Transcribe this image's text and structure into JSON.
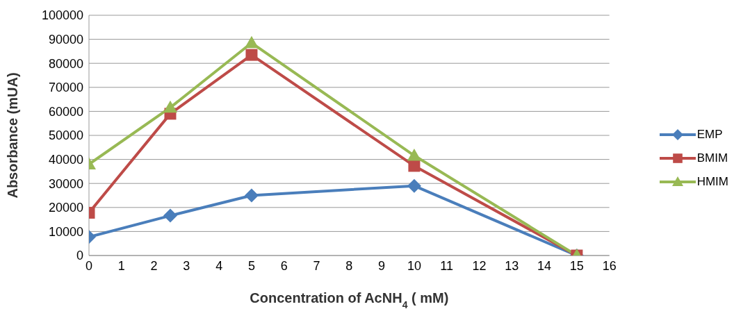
{
  "chart_data": {
    "type": "line",
    "xlabel": "Concentration of AcNH$_{4}$ ( mM)",
    "ylabel": "Absorbance (mUA)",
    "x": [
      0,
      2.5,
      5,
      10,
      15
    ],
    "series": [
      {
        "name": "EMP",
        "color": "#4a7ebb",
        "marker": "diamond",
        "values": [
          7700,
          16600,
          25000,
          29000,
          0
        ]
      },
      {
        "name": "BMIM",
        "color": "#be4b48",
        "marker": "square",
        "values": [
          17800,
          59000,
          83500,
          37300,
          0
        ]
      },
      {
        "name": "HMIM",
        "color": "#98b954",
        "marker": "triangle",
        "values": [
          38000,
          61600,
          88500,
          41600,
          0
        ]
      }
    ],
    "xlim": [
      0,
      16
    ],
    "xticks": [
      0,
      1,
      2,
      3,
      4,
      5,
      6,
      7,
      8,
      9,
      10,
      11,
      12,
      13,
      14,
      15,
      16
    ],
    "ylim": [
      0,
      100000
    ],
    "yticks": [
      0,
      10000,
      20000,
      30000,
      40000,
      50000,
      60000,
      70000,
      80000,
      90000,
      100000
    ],
    "grid": "y",
    "legend": "right",
    "line_style": "solid"
  }
}
